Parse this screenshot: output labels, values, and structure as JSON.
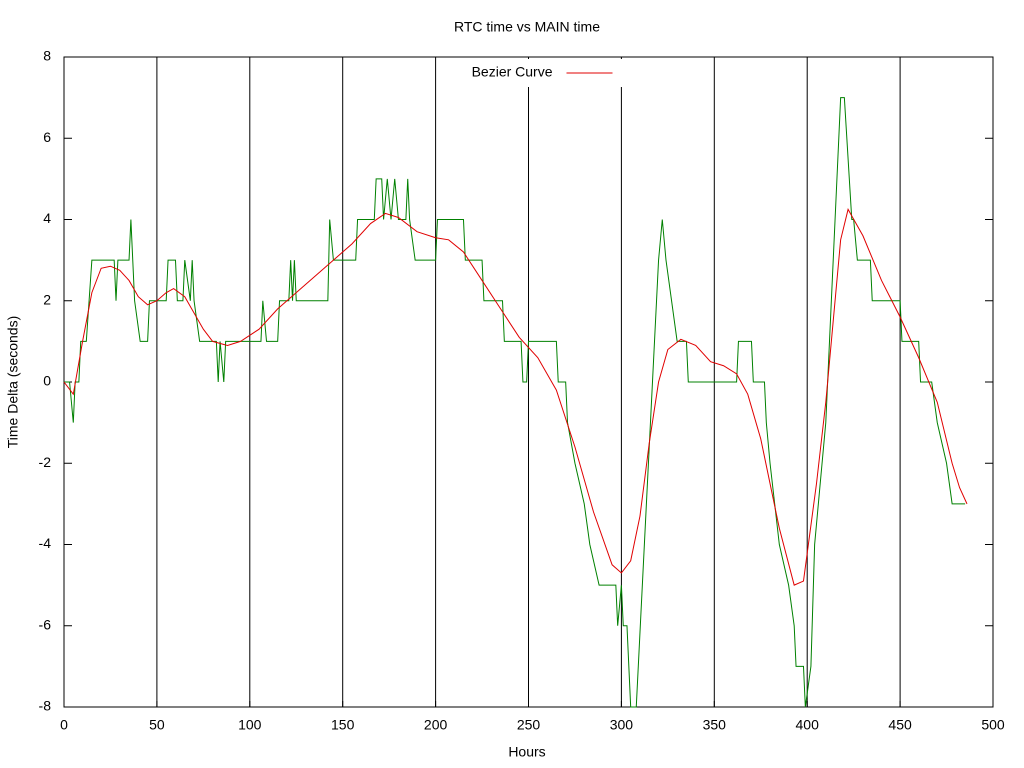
{
  "chart_data": {
    "type": "line",
    "title": "RTC time vs MAIN time",
    "xlabel": "Hours",
    "ylabel": "Time Delta (seconds)",
    "xlim": [
      0,
      500
    ],
    "ylim": [
      -8,
      8
    ],
    "xticks": [
      0,
      50,
      100,
      150,
      200,
      250,
      300,
      350,
      400,
      450,
      500
    ],
    "yticks": [
      -8,
      -6,
      -4,
      -2,
      0,
      2,
      4,
      6,
      8
    ],
    "grid": "x",
    "legend": "top-center",
    "series": [
      {
        "color": "#008000",
        "x": [
          0,
          3,
          5,
          6,
          8,
          9,
          12,
          15,
          27,
          28,
          29,
          35,
          36,
          37,
          38,
          41,
          45,
          46,
          55,
          56,
          60,
          61,
          64,
          65,
          68,
          69,
          70,
          73,
          82,
          83,
          84,
          86,
          87,
          98,
          106,
          107,
          109,
          115,
          116,
          121,
          122,
          123,
          124,
          125,
          142,
          143,
          145,
          157,
          158,
          167,
          168,
          171,
          172,
          174,
          176,
          178,
          180,
          184,
          185,
          186,
          189,
          200,
          201,
          215,
          216,
          225,
          226,
          236,
          237,
          246,
          247,
          249,
          250,
          265,
          266,
          270,
          271,
          275,
          280,
          283,
          288,
          297,
          298,
          300,
          301,
          303,
          305,
          308,
          320,
          322,
          324,
          330,
          335,
          336,
          362,
          363,
          370,
          371,
          377,
          378,
          380,
          385,
          390,
          393,
          394,
          398,
          399,
          402,
          404,
          410,
          415,
          417,
          418,
          420,
          424,
          425,
          427,
          434,
          435,
          450,
          451,
          460,
          461,
          467,
          470,
          475,
          478,
          480,
          485
        ],
        "values": [
          0,
          0,
          -1,
          0,
          0,
          1,
          1,
          3,
          3,
          2,
          3,
          3,
          4,
          3,
          2,
          1,
          1,
          2,
          2,
          3,
          3,
          2,
          2,
          3,
          2,
          3,
          2,
          1,
          1,
          0,
          1,
          0,
          1,
          1,
          1,
          2,
          1,
          1,
          2,
          2,
          3,
          2,
          3,
          2,
          2,
          4,
          3,
          3,
          4,
          4,
          5,
          5,
          4,
          5,
          4,
          5,
          4,
          4,
          5,
          4,
          3,
          3,
          4,
          4,
          3,
          3,
          2,
          2,
          1,
          1,
          0,
          0,
          1,
          1,
          0,
          0,
          -1,
          -2,
          -3,
          -4,
          -5,
          -5,
          -6,
          -5,
          -6,
          -6,
          -8,
          -8,
          3,
          4,
          3,
          1,
          1,
          0,
          0,
          1,
          1,
          0,
          0,
          -1,
          -2,
          -4,
          -5,
          -6,
          -7,
          -7,
          -8,
          -7,
          -4,
          -1,
          4,
          6,
          7,
          7,
          4,
          4,
          3,
          3,
          2,
          2,
          1,
          1,
          0,
          0,
          -1,
          -2,
          -3,
          -3,
          -3
        ]
      },
      {
        "name": "Bezier Curve",
        "color": "#e00000",
        "x": [
          0,
          5,
          10,
          15,
          20,
          25,
          30,
          35,
          40,
          45,
          50,
          55,
          59,
          65,
          70,
          75,
          80,
          88,
          95,
          105,
          115,
          125,
          135,
          145,
          155,
          165,
          173,
          180,
          190,
          200,
          207,
          215,
          225,
          235,
          245,
          255,
          265,
          275,
          285,
          295,
          300,
          305,
          310,
          315,
          320,
          325,
          332,
          340,
          348,
          355,
          362,
          368,
          375,
          385,
          393,
          398,
          405,
          410,
          414,
          418,
          422,
          430,
          440,
          450,
          460,
          470,
          478,
          482,
          486
        ],
        "values": [
          0,
          -0.3,
          1,
          2.2,
          2.8,
          2.85,
          2.75,
          2.5,
          2.1,
          1.9,
          2.0,
          2.2,
          2.3,
          2.1,
          1.7,
          1.3,
          1.0,
          0.9,
          1.0,
          1.3,
          1.8,
          2.2,
          2.6,
          3.0,
          3.4,
          3.9,
          4.15,
          4.05,
          3.7,
          3.55,
          3.5,
          3.2,
          2.5,
          1.8,
          1.1,
          0.6,
          -0.2,
          -1.6,
          -3.2,
          -4.5,
          -4.7,
          -4.4,
          -3.3,
          -1.5,
          0,
          0.8,
          1.05,
          0.9,
          0.5,
          0.4,
          0.2,
          -0.3,
          -1.4,
          -3.6,
          -5.0,
          -4.9,
          -2.5,
          -0.5,
          1.5,
          3.5,
          4.25,
          3.6,
          2.5,
          1.6,
          0.6,
          -0.5,
          -2.0,
          -2.6,
          -3.0
        ]
      }
    ]
  }
}
